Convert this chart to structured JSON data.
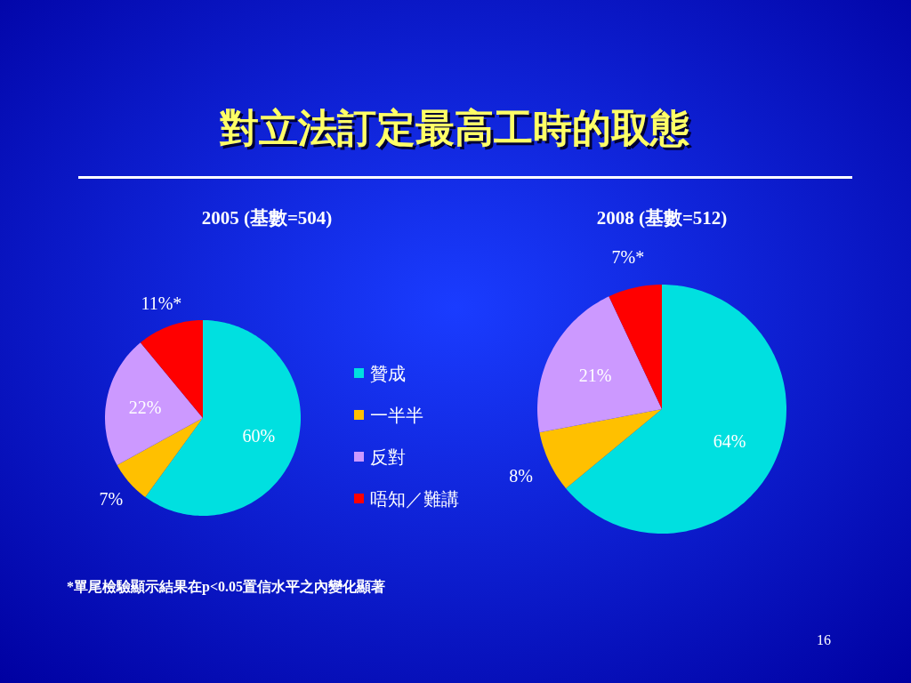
{
  "chart_data": [
    {
      "type": "pie",
      "title": "對立法訂定最高工時的取態",
      "subtitle": "2005 (基數=504)",
      "categories": [
        "贊成",
        "一半半",
        "反對",
        "唔知／難講"
      ],
      "values": [
        60,
        7,
        22,
        11
      ],
      "value_labels": [
        "60%",
        "7%",
        "22%",
        "11%*"
      ],
      "colors": [
        "#00e0e0",
        "#ffc000",
        "#cc99ff",
        "#ff0000"
      ],
      "legend": "right",
      "annotations": [
        "*單尾檢驗顯示結果在p<0.05置信水平之內變化顯著",
        "16"
      ]
    },
    {
      "type": "pie",
      "subtitle": "2008 (基數=512)",
      "categories": [
        null,
        null,
        null,
        null
      ],
      "values": [
        64,
        8,
        21,
        7
      ],
      "value_labels": [
        "64%",
        "8%",
        "21%",
        "7%*"
      ],
      "colors": [
        "#00e0e0",
        "#ffc000",
        "#cc99ff",
        "#ff0000"
      ]
    }
  ]
}
